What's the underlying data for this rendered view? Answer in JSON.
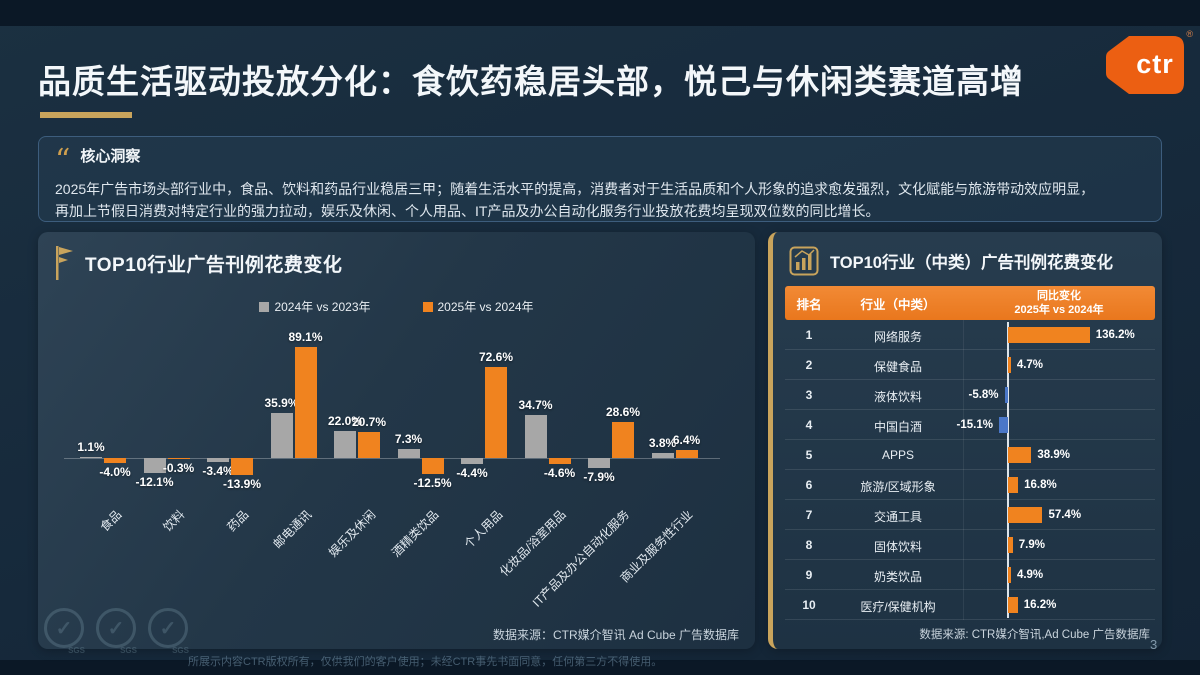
{
  "header": {
    "title": "品质生活驱动投放分化：食饮药稳居头部，悦己与休闲类赛道高增",
    "logo_text": "ctr",
    "logo_registered": "®"
  },
  "insight": {
    "label": "核心洞察",
    "line1": "2025年广告市场头部行业中，食品、饮料和药品行业稳居三甲；随着生活水平的提高，消费者对于生活品质和个人形象的追求愈发强烈，文化赋能与旅游带动效应明显，",
    "line2": "再加上节假日消费对特定行业的强力拉动，娱乐及休闲、个人用品、IT产品及办公自动化服务行业投放花费均呈现双位数的同比增长。"
  },
  "left_panel": {
    "source": "数据来源：CTR媒介智讯 Ad Cube 广告数据库",
    "disclaimer": "所展示内容CTR版权所有，仅供我们的客户使用；未经CTR事先书面同意，任何第三方不得使用。"
  },
  "right_panel": {
    "source": "数据来源: CTR媒介智讯,Ad Cube 广告数据库",
    "table_headers": {
      "rank": "排名",
      "industry": "行业（中类）",
      "change_line1": "同比变化",
      "change_line2": "2025年 vs 2024年"
    }
  },
  "page_number": "3",
  "colors": {
    "positive_bar": "#f0831f",
    "negative_bar": "#4a77c8",
    "accent_gold": "#c9a45c",
    "table_header_orange": "#e9771d"
  },
  "chart_data": [
    {
      "type": "bar",
      "title": "TOP10行业广告刊例花费变化",
      "value_suffix": "%",
      "legend_position": "top",
      "grid": false,
      "ylim": [
        -20,
        95
      ],
      "categories": [
        "食品",
        "饮料",
        "药品",
        "邮电通讯",
        "娱乐及休闲",
        "酒精类饮品",
        "个人用品",
        "化妆品/浴室用品",
        "IT产品及办公自动化服务",
        "商业及服务性行业"
      ],
      "series": [
        {
          "name": "2024年 vs 2023年",
          "color": "#a7a7a7",
          "values": [
            1.1,
            -12.1,
            -3.4,
            35.9,
            22.0,
            7.3,
            -4.4,
            34.7,
            -7.9,
            3.8
          ]
        },
        {
          "name": "2025年 vs 2024年",
          "color": "#f0831f",
          "values": [
            -4.0,
            -0.3,
            -13.9,
            89.1,
            20.7,
            -12.5,
            72.6,
            -4.6,
            28.6,
            6.4
          ]
        }
      ]
    },
    {
      "type": "bar-horizontal",
      "title": "TOP10行业（中类）广告刊例花费变化",
      "value_suffix": "%",
      "rows": [
        {
          "rank": "1",
          "name": "网络服务",
          "value": 136.2
        },
        {
          "rank": "2",
          "name": "保健食品",
          "value": 4.7
        },
        {
          "rank": "3",
          "name": "液体饮料",
          "value": -5.8
        },
        {
          "rank": "4",
          "name": "中国白酒",
          "value": -15.1
        },
        {
          "rank": "5",
          "name": "APPS",
          "value": 38.9
        },
        {
          "rank": "6",
          "name": "旅游/区域形象",
          "value": 16.8
        },
        {
          "rank": "7",
          "name": "交通工具",
          "value": 57.4
        },
        {
          "rank": "8",
          "name": "固体饮料",
          "value": 7.9
        },
        {
          "rank": "9",
          "name": "奶类饮品",
          "value": 4.9
        },
        {
          "rank": "10",
          "name": "医疗/保健机构",
          "value": 16.2
        }
      ]
    }
  ]
}
